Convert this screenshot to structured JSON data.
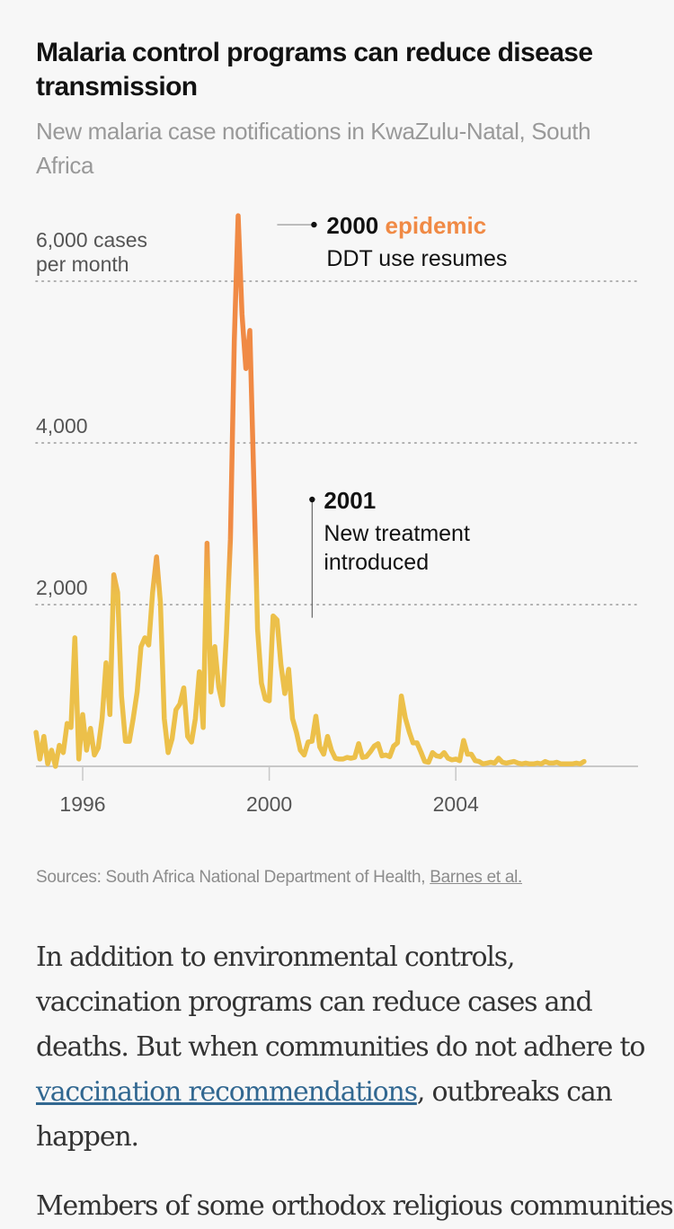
{
  "header": {
    "title": "Malaria control programs can reduce disease transmission",
    "subtitle": "New malaria case notifications in KwaZulu-Natal, South Africa"
  },
  "chart_data": {
    "type": "line",
    "title": "Malaria control programs can reduce disease transmission",
    "subtitle": "New malaria case notifications in KwaZulu-Natal, South Africa",
    "xlabel": "",
    "ylabel": "cases per month",
    "x_start": "1995-01",
    "x_frequency": "monthly",
    "xlim": [
      1995.0,
      2007.95
    ],
    "ylim": [
      0,
      7000
    ],
    "grid": true,
    "y_ticks": [
      {
        "value": 2000,
        "label": "2,000"
      },
      {
        "value": 4000,
        "label": "4,000"
      },
      {
        "value": 6000,
        "label": "6,000 cases",
        "label2": "per month"
      }
    ],
    "x_ticks": [
      {
        "value": 1996,
        "label": "1996"
      },
      {
        "value": 2000,
        "label": "2000"
      },
      {
        "value": 2004,
        "label": "2004"
      }
    ],
    "colors": {
      "low": "#ecc04a",
      "high": "#f08a45",
      "grid": "#9a9a9a",
      "axis": "#c8c8c8",
      "annotation_line": "#666666"
    },
    "series": [
      {
        "name": "New malaria case notifications",
        "values": [
          420,
          90,
          370,
          30,
          200,
          0,
          260,
          170,
          530,
          480,
          1590,
          90,
          640,
          200,
          470,
          140,
          230,
          590,
          1280,
          640,
          2370,
          2150,
          870,
          310,
          310,
          590,
          920,
          1480,
          1590,
          1500,
          2150,
          2590,
          2030,
          590,
          170,
          340,
          700,
          770,
          970,
          370,
          300,
          590,
          1170,
          480,
          2760,
          920,
          1480,
          980,
          760,
          1640,
          2810,
          5260,
          6810,
          5590,
          4920,
          5390,
          3590,
          1700,
          1030,
          830,
          810,
          1860,
          1810,
          1260,
          900,
          1200,
          590,
          420,
          200,
          140,
          300,
          310,
          620,
          240,
          150,
          370,
          200,
          100,
          90,
          90,
          110,
          100,
          110,
          280,
          110,
          120,
          180,
          250,
          280,
          130,
          140,
          120,
          250,
          290,
          870,
          600,
          430,
          290,
          290,
          180,
          60,
          50,
          170,
          130,
          120,
          170,
          100,
          80,
          90,
          70,
          320,
          150,
          150,
          70,
          60,
          30,
          40,
          50,
          40,
          100,
          50,
          40,
          50,
          60,
          40,
          30,
          40,
          30,
          30,
          40,
          30,
          60,
          40,
          40,
          50,
          30,
          30,
          30,
          30,
          40,
          30,
          60
        ]
      }
    ],
    "annotations": [
      {
        "x": 2000.17,
        "y": 6810,
        "bold": "2000",
        "highlight": "epidemic",
        "text": "DDT use resumes"
      },
      {
        "x": 2000.92,
        "y": 1860,
        "bold": "2001",
        "lines": [
          "New treatment",
          "introduced"
        ]
      }
    ]
  },
  "footer": {
    "sources_label": "Sources: South Africa National Department of Health, ",
    "sources_link": "Barnes et al."
  },
  "article": {
    "p1_before": "In addition to environmental controls, vaccination programs can reduce cases and deaths. But when communities do not adhere to ",
    "p1_link": "vaccination recommendations",
    "p1_after": ", outbreaks can happen.",
    "p2_partial": "Members of some orthodox religious communities"
  }
}
